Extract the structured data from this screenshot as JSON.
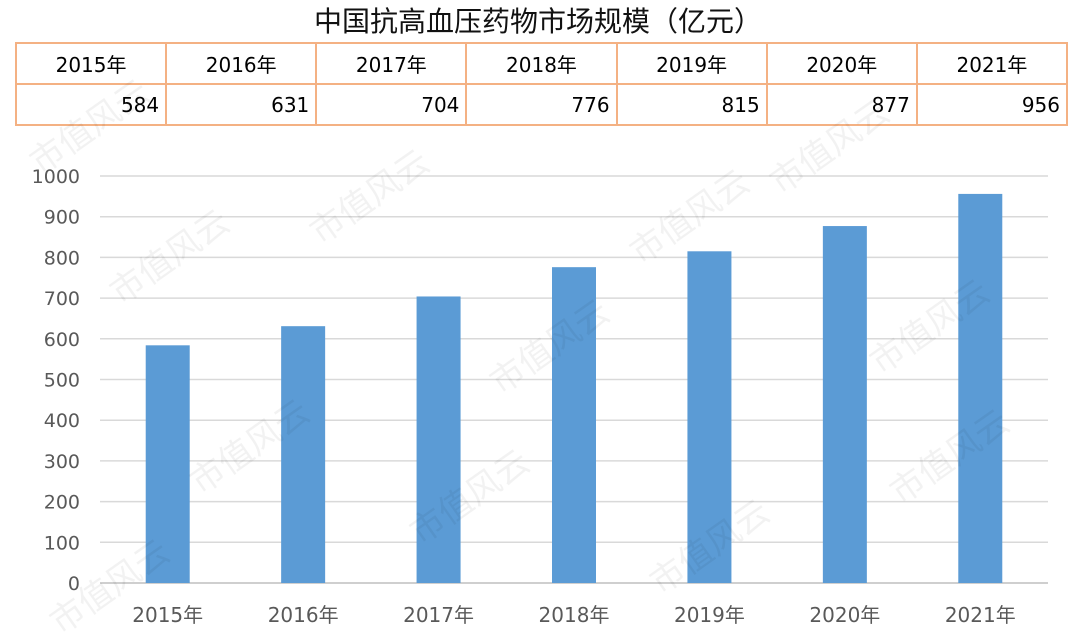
{
  "title": "中国抗高血压药物市场规模（亿元）",
  "watermark": "市值风云",
  "table": {
    "years": [
      "2015年",
      "2016年",
      "2017年",
      "2018年",
      "2019年",
      "2020年",
      "2021年"
    ],
    "values": [
      "584",
      "631",
      "704",
      "776",
      "815",
      "877",
      "956"
    ]
  },
  "colors": {
    "bar": "#5b9bd5",
    "table_border": "#f4b183",
    "grid": "#d9d9d9"
  },
  "chart_data": {
    "type": "bar",
    "categories": [
      "2015年",
      "2016年",
      "2017年",
      "2018年",
      "2019年",
      "2020年",
      "2021年"
    ],
    "values": [
      584,
      631,
      704,
      776,
      815,
      877,
      956
    ],
    "title": "中国抗高血压药物市场规模（亿元）",
    "xlabel": "",
    "ylabel": "",
    "ylim": [
      0,
      1000
    ],
    "yticks": [
      0,
      100,
      200,
      300,
      400,
      500,
      600,
      700,
      800,
      900,
      1000
    ],
    "grid": true,
    "legend": "none"
  }
}
